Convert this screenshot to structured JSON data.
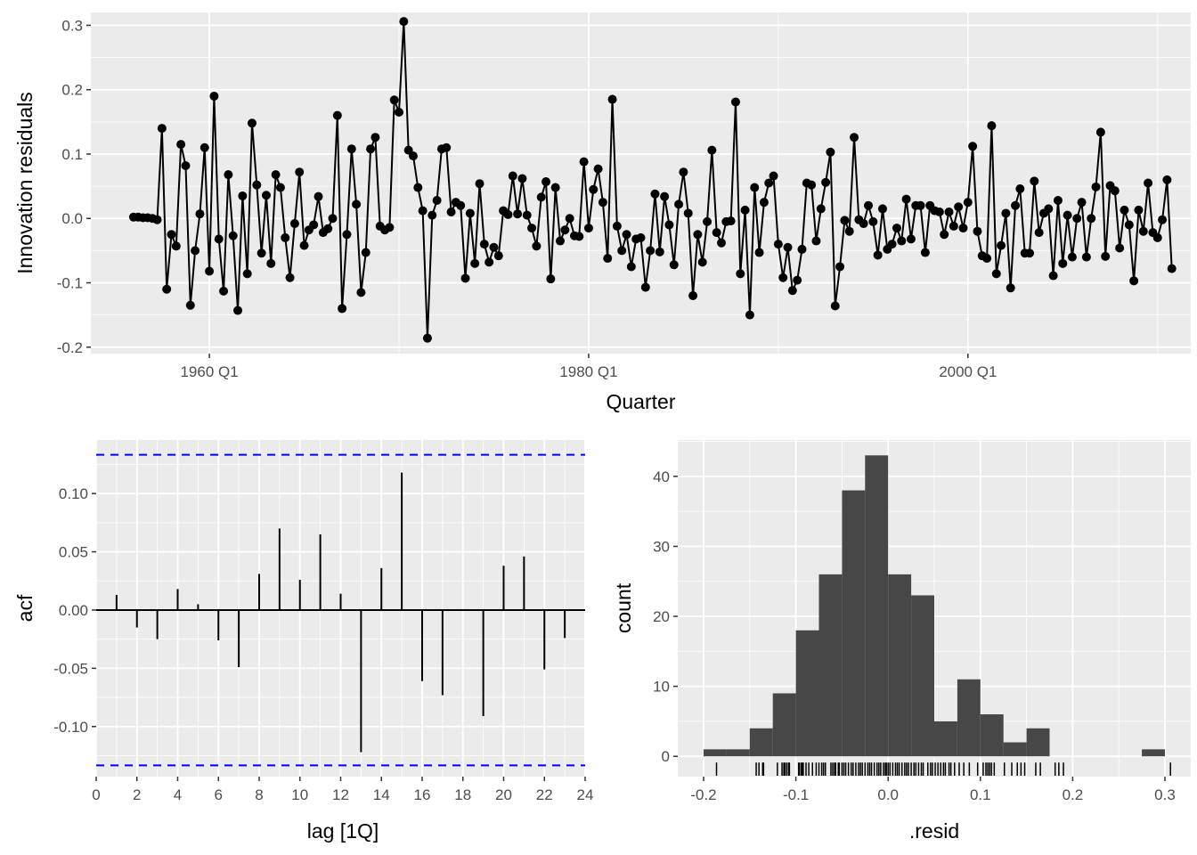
{
  "chart_data": [
    {
      "type": "line",
      "xlabel": "Quarter",
      "ylabel": "Innovation residuals",
      "x_start": "1956 Q1",
      "xtick_labels": [
        "1960 Q1",
        "1980 Q1",
        "2000 Q1"
      ],
      "xtick_years": [
        1960,
        1980,
        2000
      ],
      "ytick_labels": [
        "-0.2",
        "-0.1",
        "0.0",
        "0.1",
        "0.2",
        "0.3"
      ],
      "yticks": [
        -0.2,
        -0.1,
        0.0,
        0.1,
        0.2,
        0.3
      ],
      "xlim": [
        1953.75,
        2011.75
      ],
      "ylim": [
        -0.21,
        0.32
      ],
      "values": [
        0.002,
        0.002,
        0.001,
        0.001,
        0.0,
        -0.002,
        0.14,
        -0.11,
        -0.025,
        -0.043,
        0.115,
        0.082,
        -0.135,
        -0.05,
        0.007,
        0.11,
        -0.082,
        0.19,
        -0.032,
        -0.113,
        0.068,
        -0.027,
        -0.143,
        0.035,
        -0.086,
        0.148,
        0.052,
        -0.054,
        0.036,
        -0.07,
        0.068,
        0.048,
        -0.03,
        -0.092,
        -0.008,
        0.072,
        -0.042,
        -0.018,
        -0.01,
        0.034,
        -0.022,
        -0.016,
        0.0,
        0.16,
        -0.14,
        -0.025,
        0.108,
        0.022,
        -0.115,
        -0.053,
        0.108,
        0.126,
        -0.012,
        -0.018,
        -0.014,
        0.184,
        0.165,
        0.306,
        0.106,
        0.097,
        0.048,
        0.012,
        -0.186,
        0.005,
        0.028,
        0.108,
        0.11,
        0.01,
        0.025,
        0.02,
        -0.093,
        0.008,
        -0.07,
        0.054,
        -0.04,
        -0.068,
        -0.045,
        -0.058,
        0.012,
        0.006,
        0.066,
        0.007,
        0.062,
        0.005,
        -0.015,
        -0.043,
        0.033,
        0.057,
        -0.094,
        0.048,
        -0.035,
        -0.018,
        0.0,
        -0.027,
        -0.028,
        0.088,
        -0.015,
        0.045,
        0.077,
        0.025,
        -0.062,
        0.185,
        -0.012,
        -0.05,
        -0.025,
        -0.075,
        -0.032,
        -0.03,
        -0.107,
        -0.05,
        0.038,
        -0.052,
        0.034,
        -0.01,
        -0.072,
        0.022,
        0.072,
        0.008,
        -0.12,
        -0.025,
        -0.068,
        -0.005,
        0.106,
        -0.022,
        -0.038,
        -0.005,
        -0.004,
        0.181,
        -0.086,
        0.013,
        -0.15,
        0.048,
        -0.053,
        0.025,
        0.055,
        0.066,
        -0.04,
        -0.092,
        -0.045,
        -0.112,
        -0.096,
        -0.048,
        0.055,
        0.052,
        -0.035,
        0.015,
        0.056,
        0.103,
        -0.136,
        -0.075,
        -0.003,
        -0.02,
        0.126,
        -0.002,
        -0.008,
        0.02,
        -0.005,
        -0.057,
        0.015,
        -0.048,
        -0.04,
        -0.015,
        -0.035,
        0.03,
        -0.032,
        0.02,
        0.02,
        -0.053,
        0.02,
        0.012,
        0.01,
        -0.025,
        0.01,
        -0.012,
        0.018,
        -0.015,
        0.025,
        0.112,
        -0.02,
        -0.058,
        -0.062,
        0.144,
        -0.086,
        -0.042,
        0.008,
        -0.108,
        0.02,
        0.046,
        -0.054,
        -0.054,
        0.058,
        -0.022,
        0.008,
        0.015,
        -0.089,
        0.028,
        -0.07,
        0.005,
        -0.06,
        0.0,
        0.025,
        -0.06,
        0.0,
        0.049,
        0.134,
        -0.059,
        0.051,
        0.043,
        -0.046,
        0.013,
        -0.01,
        -0.097,
        0.013,
        -0.02,
        0.055,
        -0.022,
        -0.03,
        -0.002,
        0.06,
        -0.078
      ]
    },
    {
      "type": "bar",
      "xlabel": "lag [1Q]",
      "ylabel": "acf",
      "x": [
        1,
        2,
        3,
        4,
        5,
        6,
        7,
        8,
        9,
        10,
        11,
        12,
        13,
        14,
        15,
        16,
        17,
        18,
        19,
        20,
        21,
        22,
        23
      ],
      "values": [
        0.013,
        -0.015,
        -0.025,
        0.018,
        0.005,
        -0.026,
        -0.049,
        0.031,
        0.07,
        0.026,
        0.065,
        0.014,
        -0.122,
        0.036,
        0.118,
        -0.061,
        -0.073,
        0.0,
        -0.091,
        0.038,
        0.046,
        -0.051,
        -0.024
      ],
      "conf_limit": 0.1333,
      "xtick_labels": [
        "0",
        "2",
        "4",
        "6",
        "8",
        "10",
        "12",
        "14",
        "16",
        "18",
        "20",
        "22",
        "24"
      ],
      "xticks": [
        0,
        2,
        4,
        6,
        8,
        10,
        12,
        14,
        16,
        18,
        20,
        22,
        24
      ],
      "ytick_labels": [
        "-0.10",
        "-0.05",
        "0.00",
        "0.05",
        "0.10"
      ],
      "yticks": [
        -0.1,
        -0.05,
        0.0,
        0.05,
        0.1
      ],
      "xlim": [
        0,
        24
      ],
      "ylim": [
        -0.143,
        0.146
      ]
    },
    {
      "type": "bar",
      "subtype": "histogram",
      "xlabel": ".resid",
      "ylabel": "count",
      "bin_starts": [
        -0.2,
        -0.175,
        -0.15,
        -0.125,
        -0.1,
        -0.075,
        -0.05,
        -0.025,
        0.0,
        0.025,
        0.05,
        0.075,
        0.1,
        0.125,
        0.15,
        0.175,
        0.2,
        0.225,
        0.25,
        0.275
      ],
      "bin_width": 0.025,
      "values": [
        1,
        1,
        4,
        9,
        18,
        26,
        38,
        43,
        26,
        23,
        5,
        11,
        6,
        2,
        4,
        0,
        0,
        0,
        0,
        1
      ],
      "rug_values": [
        -0.186,
        -0.143,
        -0.14,
        -0.136,
        -0.135,
        -0.12,
        -0.115,
        -0.113,
        -0.112,
        -0.11,
        -0.108,
        -0.107,
        -0.097,
        -0.096,
        -0.094,
        -0.093,
        -0.092,
        -0.089,
        -0.086,
        -0.082,
        -0.078,
        -0.075,
        -0.072,
        -0.07,
        -0.068,
        -0.062,
        -0.06,
        -0.058,
        -0.057,
        -0.054,
        -0.053,
        -0.05,
        -0.048,
        -0.046,
        -0.043,
        -0.04,
        -0.038,
        -0.035,
        -0.032,
        -0.03,
        -0.028,
        -0.025,
        -0.022,
        -0.02,
        -0.018,
        -0.015,
        -0.012,
        -0.01,
        -0.008,
        -0.005,
        -0.003,
        -0.002,
        0.0,
        0.002,
        0.005,
        0.008,
        0.01,
        0.012,
        0.015,
        0.018,
        0.02,
        0.022,
        0.025,
        0.028,
        0.03,
        0.033,
        0.036,
        0.038,
        0.043,
        0.046,
        0.048,
        0.051,
        0.054,
        0.057,
        0.06,
        0.062,
        0.066,
        0.068,
        0.072,
        0.077,
        0.082,
        0.088,
        0.097,
        0.103,
        0.106,
        0.108,
        0.11,
        0.112,
        0.115,
        0.126,
        0.134,
        0.14,
        0.144,
        0.148,
        0.16,
        0.165,
        0.181,
        0.185,
        0.19,
        0.306
      ],
      "xtick_labels": [
        "-0.2",
        "-0.1",
        "0.0",
        "0.1",
        "0.2",
        "0.3"
      ],
      "xticks": [
        -0.2,
        -0.1,
        0.0,
        0.1,
        0.2,
        0.3
      ],
      "ytick_labels": [
        "0",
        "10",
        "20",
        "30",
        "40"
      ],
      "yticks": [
        0,
        10,
        20,
        30,
        40
      ],
      "xlim": [
        -0.228,
        0.328
      ],
      "ylim": [
        -2.9,
        45.2
      ]
    }
  ],
  "colors": {
    "panel_bg": "#ebebeb",
    "grid": "#ffffff",
    "line": "#000000",
    "bar_fill": "#474747",
    "conf_line": "#0000ff"
  }
}
